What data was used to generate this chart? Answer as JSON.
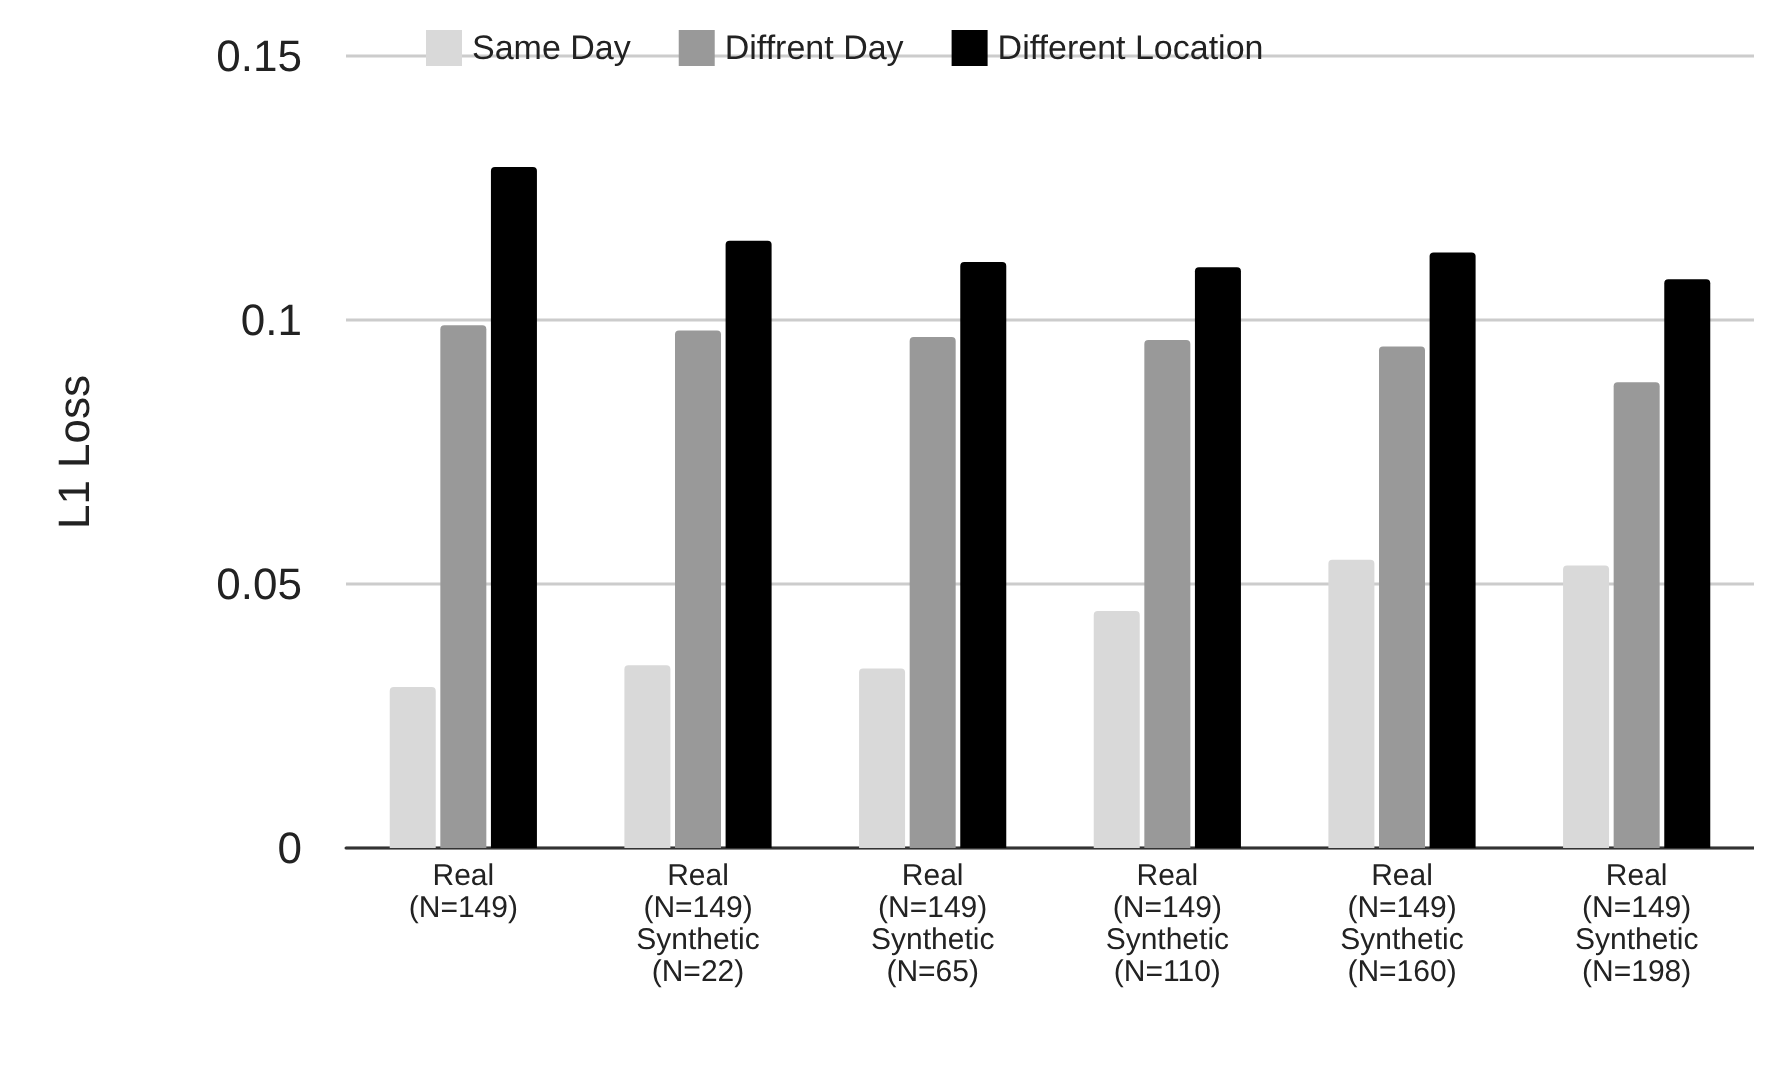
{
  "chart_data": {
    "type": "bar",
    "ylabel": "L1 Loss",
    "categories": [
      "Real\n(N=149)",
      "Real\n(N=149)\nSynthetic\n(N=22)",
      "Real\n(N=149)\nSynthetic\n(N=65)",
      "Real\n(N=149)\nSynthetic\n(N=110)",
      "Real\n(N=149)\nSynthetic\n(N=160)",
      "Real\n(N=149)\nSynthetic\n(N=198)"
    ],
    "series": [
      {
        "name": "Same Day",
        "color": "#d9d9d9",
        "values": [
          0.0305,
          0.0346,
          0.034,
          0.0449,
          0.0546,
          0.0535
        ]
      },
      {
        "name": "Diffrent Day",
        "color": "#999999",
        "values": [
          0.099,
          0.098,
          0.0968,
          0.0962,
          0.095,
          0.0882
        ]
      },
      {
        "name": "Different Location",
        "color": "#000000",
        "values": [
          0.129,
          0.115,
          0.111,
          0.11,
          0.1128,
          0.1077
        ]
      }
    ],
    "ylim": [
      0,
      0.15
    ],
    "yticks": [
      0,
      0.05,
      0.1,
      0.15
    ],
    "grid": "y",
    "legend": "top"
  }
}
